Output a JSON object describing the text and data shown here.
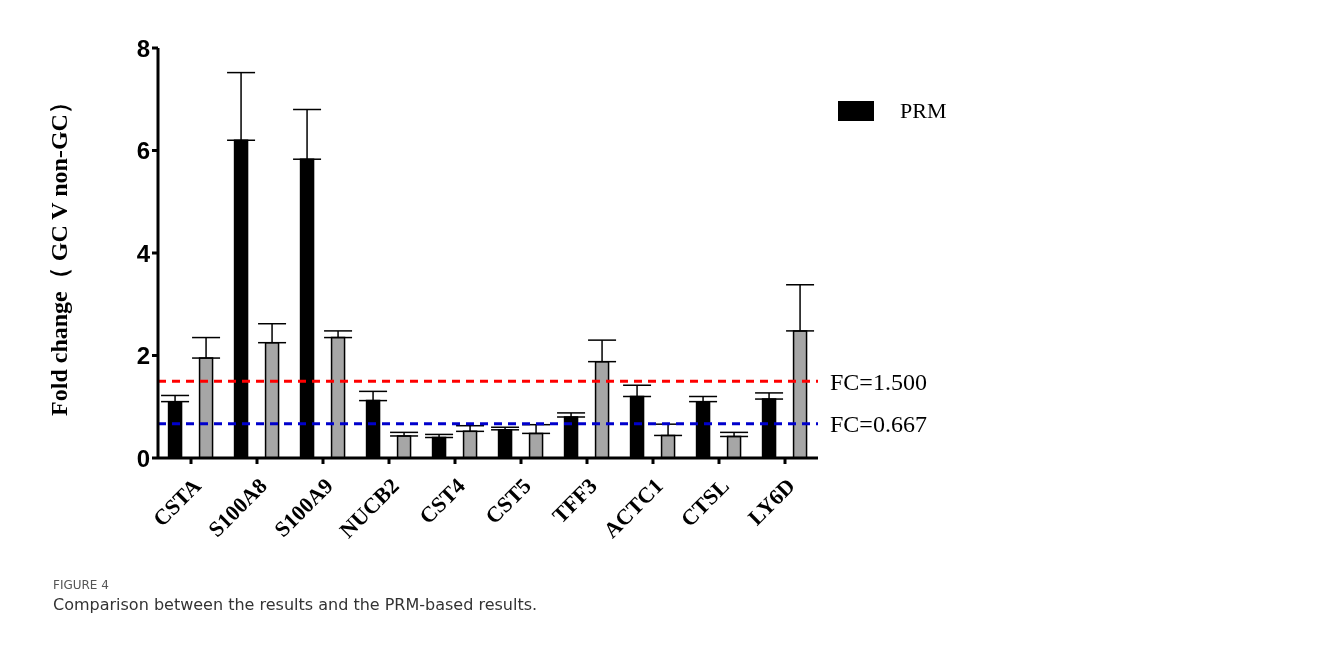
{
  "chart_data": {
    "type": "bar",
    "ylabel": "Fold change（ GC V non-GC）",
    "categories": [
      "CSTA",
      "S100A8",
      "S100A9",
      "NUCB2",
      "CST4",
      "CST5",
      "TFF3",
      "ACTC1",
      "CTSL",
      "LY6D"
    ],
    "series": [
      {
        "name": "PRM",
        "color": "#000000",
        "values": [
          1.1,
          6.2,
          5.83,
          1.12,
          0.4,
          0.55,
          0.8,
          1.2,
          1.1,
          1.15
        ],
        "errors": [
          [
            1.1,
            1.22
          ],
          [
            6.2,
            7.52
          ],
          [
            5.83,
            6.8
          ],
          [
            1.12,
            1.3
          ],
          [
            0.4,
            0.46
          ],
          [
            0.55,
            0.6
          ],
          [
            0.8,
            0.88
          ],
          [
            1.2,
            1.42
          ],
          [
            1.1,
            1.2
          ],
          [
            1.15,
            1.27
          ]
        ]
      },
      {
        "color": "#a6a6a6",
        "values": [
          1.95,
          2.25,
          2.35,
          0.43,
          0.52,
          0.48,
          1.88,
          0.44,
          0.42,
          2.48
        ],
        "errors": [
          [
            1.95,
            2.35
          ],
          [
            2.25,
            2.62
          ],
          [
            2.35,
            2.48
          ],
          [
            0.43,
            0.5
          ],
          [
            0.52,
            0.63
          ],
          [
            0.48,
            0.65
          ],
          [
            1.88,
            2.3
          ],
          [
            0.44,
            0.66
          ],
          [
            0.42,
            0.5
          ],
          [
            2.48,
            3.38
          ]
        ]
      }
    ],
    "ylim": [
      0,
      8
    ],
    "yticks": [
      0,
      2,
      4,
      6,
      8
    ],
    "grid": false,
    "legend": "top right",
    "ref_lines": [
      {
        "axis": "y",
        "value": 1.5,
        "label": "FC=1.500",
        "color": "#ff0000",
        "line_style": "dashed"
      },
      {
        "axis": "y",
        "value": 0.667,
        "label": "FC=0.667",
        "color": "#0000cc",
        "line_style": "dashed"
      }
    ],
    "annotations": [
      "FIGURE 4",
      "Comparison between the results and the PRM-based results."
    ]
  }
}
